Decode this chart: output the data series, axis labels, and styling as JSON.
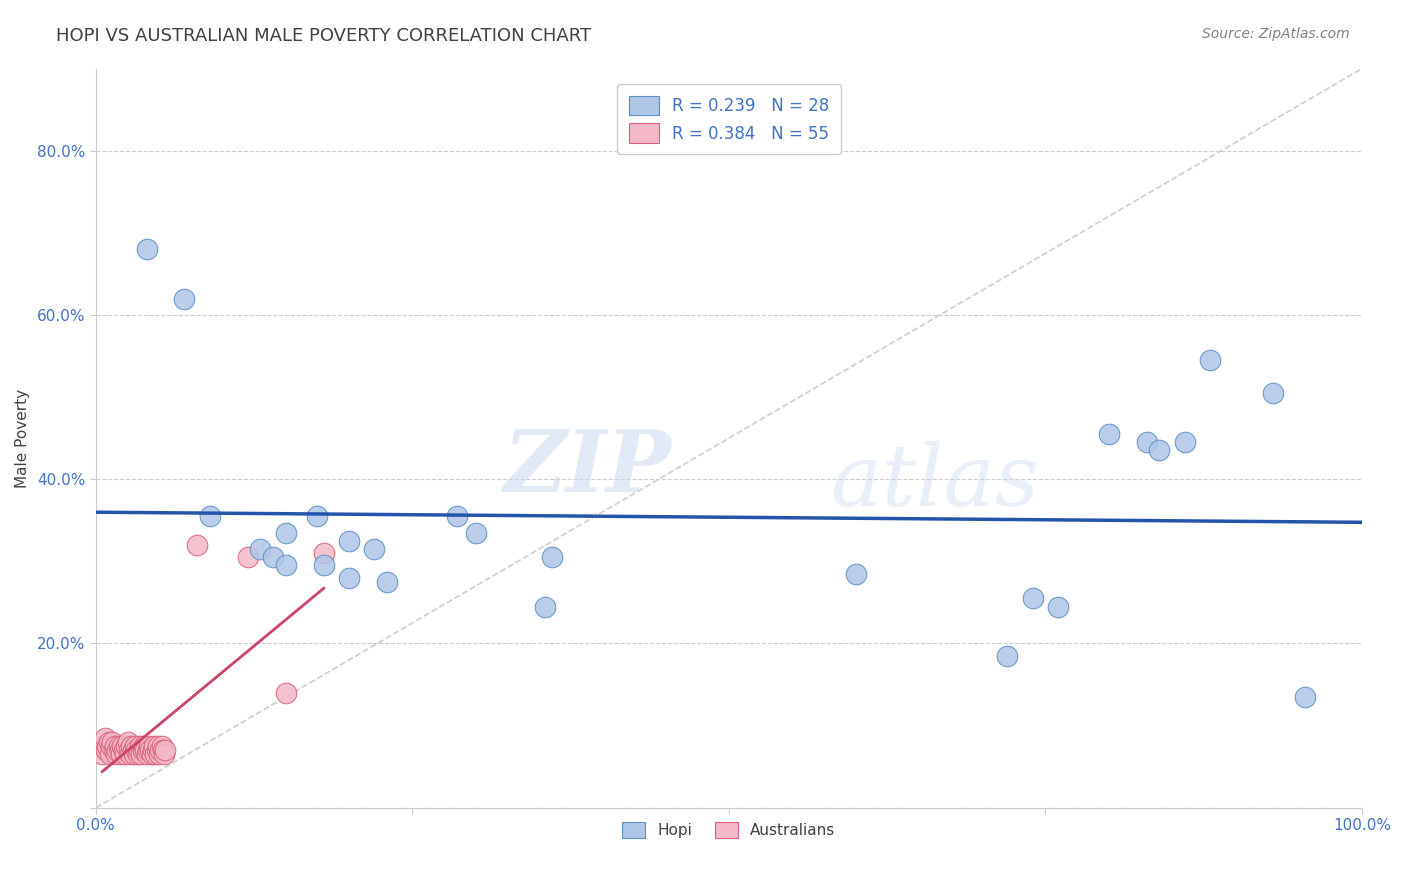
{
  "title": "HOPI VS AUSTRALIAN MALE POVERTY CORRELATION CHART",
  "source": "Source: ZipAtlas.com",
  "ylabel_label": "Male Poverty",
  "xlim": [
    0.0,
    1.0
  ],
  "ylim": [
    0.0,
    0.9
  ],
  "xticks": [
    0.0,
    0.25,
    0.5,
    0.75,
    1.0
  ],
  "yticks": [
    0.0,
    0.2,
    0.4,
    0.6,
    0.8
  ],
  "ytick_labels": [
    "",
    "20.0%",
    "40.0%",
    "60.0%",
    "80.0%"
  ],
  "xtick_labels": [
    "0.0%",
    "",
    "",
    "",
    "100.0%"
  ],
  "hopi_R": 0.239,
  "hopi_N": 28,
  "australians_R": 0.384,
  "australians_N": 55,
  "hopi_color": "#aec6e8",
  "hopi_edge_color": "#5a8fc2",
  "australians_color": "#f4b8c8",
  "australians_edge_color": "#d9607a",
  "trend_hopi_color": "#2255aa",
  "trend_australians_color": "#cc4466",
  "diagonal_color": "#cccccc",
  "hopi_points": [
    [
      0.04,
      0.68
    ],
    [
      0.07,
      0.62
    ],
    [
      0.09,
      0.355
    ],
    [
      0.13,
      0.315
    ],
    [
      0.15,
      0.335
    ],
    [
      0.14,
      0.305
    ],
    [
      0.15,
      0.295
    ],
    [
      0.175,
      0.355
    ],
    [
      0.18,
      0.295
    ],
    [
      0.2,
      0.28
    ],
    [
      0.2,
      0.325
    ],
    [
      0.22,
      0.315
    ],
    [
      0.23,
      0.275
    ],
    [
      0.285,
      0.355
    ],
    [
      0.3,
      0.335
    ],
    [
      0.355,
      0.245
    ],
    [
      0.36,
      0.305
    ],
    [
      0.6,
      0.285
    ],
    [
      0.72,
      0.185
    ],
    [
      0.74,
      0.255
    ],
    [
      0.76,
      0.245
    ],
    [
      0.8,
      0.455
    ],
    [
      0.83,
      0.445
    ],
    [
      0.84,
      0.435
    ],
    [
      0.86,
      0.445
    ],
    [
      0.88,
      0.545
    ],
    [
      0.93,
      0.505
    ],
    [
      0.955,
      0.135
    ]
  ],
  "australians_points": [
    [
      0.005,
      0.065
    ],
    [
      0.006,
      0.075
    ],
    [
      0.007,
      0.085
    ],
    [
      0.008,
      0.07
    ],
    [
      0.009,
      0.075
    ],
    [
      0.01,
      0.08
    ],
    [
      0.011,
      0.065
    ],
    [
      0.012,
      0.075
    ],
    [
      0.013,
      0.08
    ],
    [
      0.014,
      0.07
    ],
    [
      0.015,
      0.075
    ],
    [
      0.016,
      0.065
    ],
    [
      0.017,
      0.07
    ],
    [
      0.018,
      0.075
    ],
    [
      0.019,
      0.07
    ],
    [
      0.02,
      0.065
    ],
    [
      0.021,
      0.075
    ],
    [
      0.022,
      0.07
    ],
    [
      0.023,
      0.065
    ],
    [
      0.024,
      0.075
    ],
    [
      0.025,
      0.08
    ],
    [
      0.026,
      0.07
    ],
    [
      0.027,
      0.065
    ],
    [
      0.028,
      0.075
    ],
    [
      0.029,
      0.07
    ],
    [
      0.03,
      0.065
    ],
    [
      0.031,
      0.075
    ],
    [
      0.032,
      0.07
    ],
    [
      0.033,
      0.065
    ],
    [
      0.034,
      0.07
    ],
    [
      0.035,
      0.075
    ],
    [
      0.036,
      0.065
    ],
    [
      0.037,
      0.07
    ],
    [
      0.038,
      0.075
    ],
    [
      0.039,
      0.07
    ],
    [
      0.04,
      0.065
    ],
    [
      0.041,
      0.07
    ],
    [
      0.042,
      0.075
    ],
    [
      0.043,
      0.07
    ],
    [
      0.044,
      0.065
    ],
    [
      0.045,
      0.07
    ],
    [
      0.046,
      0.075
    ],
    [
      0.047,
      0.065
    ],
    [
      0.048,
      0.07
    ],
    [
      0.049,
      0.075
    ],
    [
      0.05,
      0.065
    ],
    [
      0.051,
      0.07
    ],
    [
      0.052,
      0.075
    ],
    [
      0.053,
      0.07
    ],
    [
      0.054,
      0.065
    ],
    [
      0.055,
      0.07
    ],
    [
      0.08,
      0.32
    ],
    [
      0.12,
      0.305
    ],
    [
      0.15,
      0.14
    ],
    [
      0.18,
      0.31
    ]
  ],
  "watermark_zip": "ZIP",
  "watermark_atlas": "atlas",
  "background_color": "#ffffff",
  "grid_color": "#cccccc",
  "tick_color": "#4472c4",
  "title_color": "#404040",
  "legend_R_color": "#4472c4"
}
